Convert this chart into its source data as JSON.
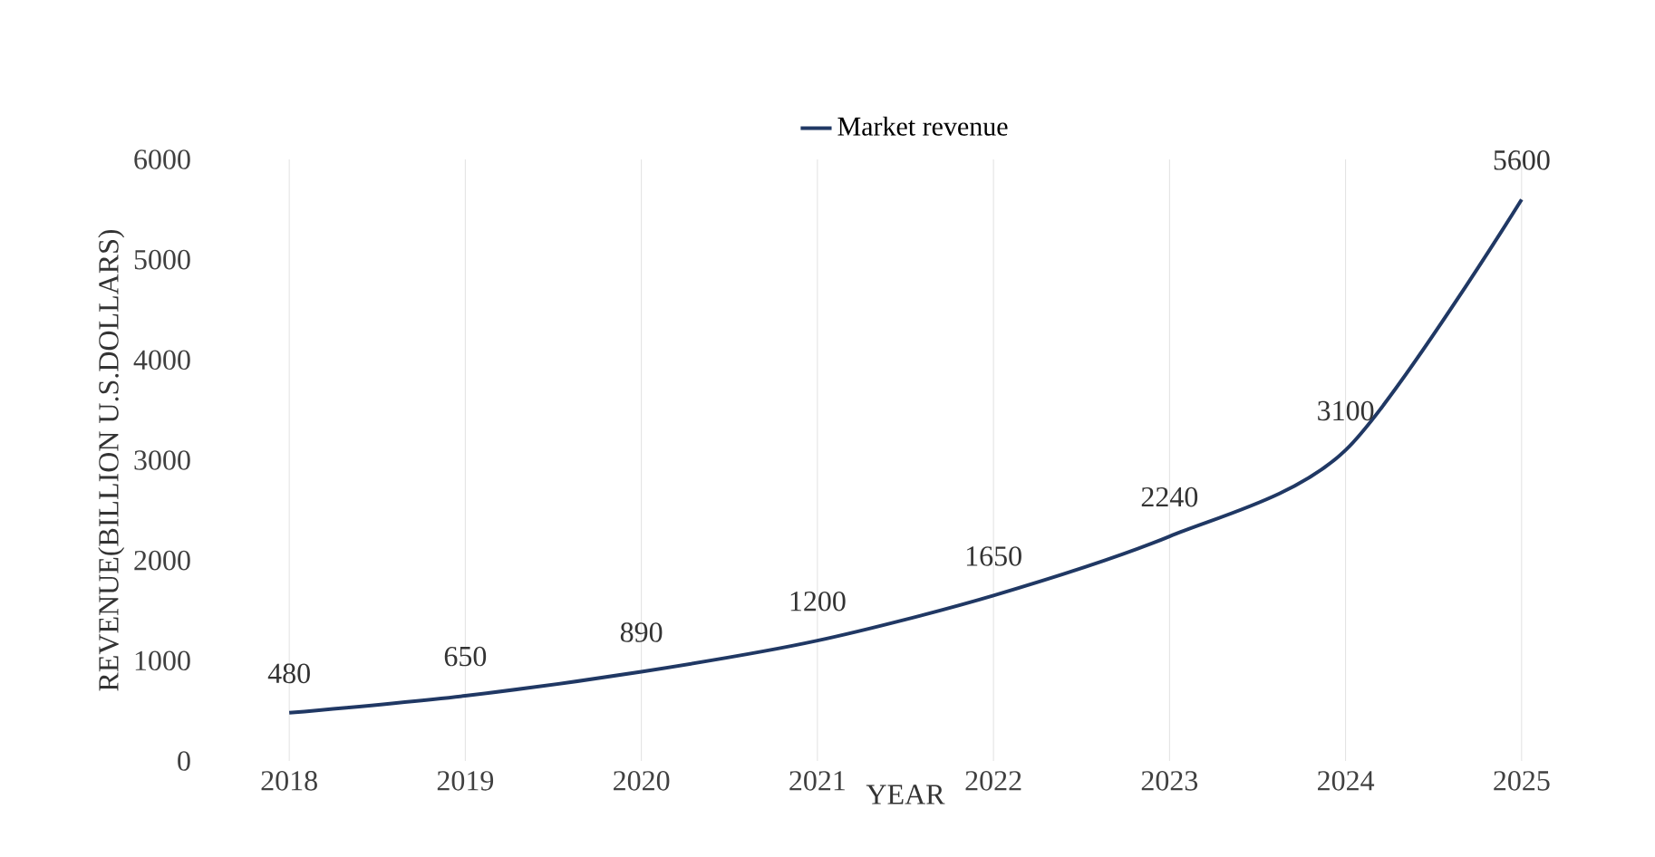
{
  "chart_data": {
    "type": "line",
    "xlabel": "YEAR",
    "ylabel": "REVENUE(BILLION U.S.DOLLARS)",
    "categories": [
      "2018",
      "2019",
      "2020",
      "2021",
      "2022",
      "2023",
      "2024",
      "2025"
    ],
    "series": [
      {
        "name": "Market revenue",
        "color": "#203864",
        "values": [
          480,
          650,
          890,
          1200,
          1650,
          2240,
          3100,
          5600
        ]
      }
    ],
    "ylim": [
      0,
      6000
    ],
    "yticks": [
      0,
      1000,
      2000,
      3000,
      4000,
      5000,
      6000
    ],
    "grid": "x",
    "legend": "top",
    "data_labels": true,
    "marker": "none",
    "line_style": "solid"
  }
}
